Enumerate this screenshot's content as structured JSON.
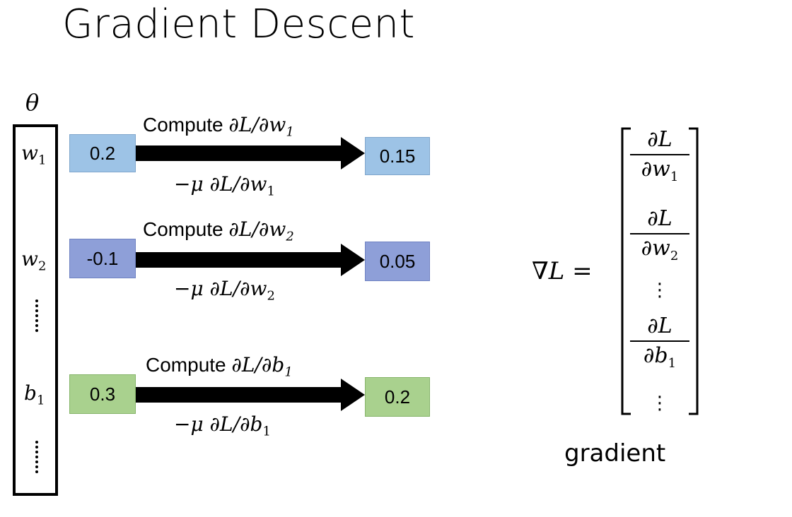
{
  "title": "Gradient Descent",
  "theta_symbol": "θ",
  "parameters": [
    {
      "symbol": "w",
      "subscript": "1",
      "old_value": "0.2",
      "new_value": "0.15",
      "compute_prefix": "Compute ",
      "compute_expr": "∂L/∂w",
      "compute_sub": "1",
      "update_expr": "−μ ∂L/∂w",
      "update_sub": "1",
      "color": "#9dc3e6"
    },
    {
      "symbol": "w",
      "subscript": "2",
      "old_value": "-0.1",
      "new_value": "0.05",
      "compute_prefix": "Compute ",
      "compute_expr": "∂L/∂w",
      "compute_sub": "2",
      "update_expr": "−μ ∂L/∂w",
      "update_sub": "2",
      "color": "#8e9fd8"
    },
    {
      "symbol": "b",
      "subscript": "1",
      "old_value": "0.3",
      "new_value": "0.2",
      "compute_prefix": "Compute ",
      "compute_expr": "∂L/∂b",
      "compute_sub": "1",
      "update_expr": "−μ ∂L/∂b",
      "update_sub": "1",
      "color": "#a9d18e"
    }
  ],
  "gradient": {
    "lhs": "∇L =",
    "entries": [
      {
        "num": "∂L",
        "den": "∂w",
        "sub": "1"
      },
      {
        "num": "∂L",
        "den": "∂w",
        "sub": "2"
      },
      {
        "num": "∂L",
        "den": "∂b",
        "sub": "1"
      }
    ],
    "vdots": "⋮",
    "label": "gradient"
  }
}
